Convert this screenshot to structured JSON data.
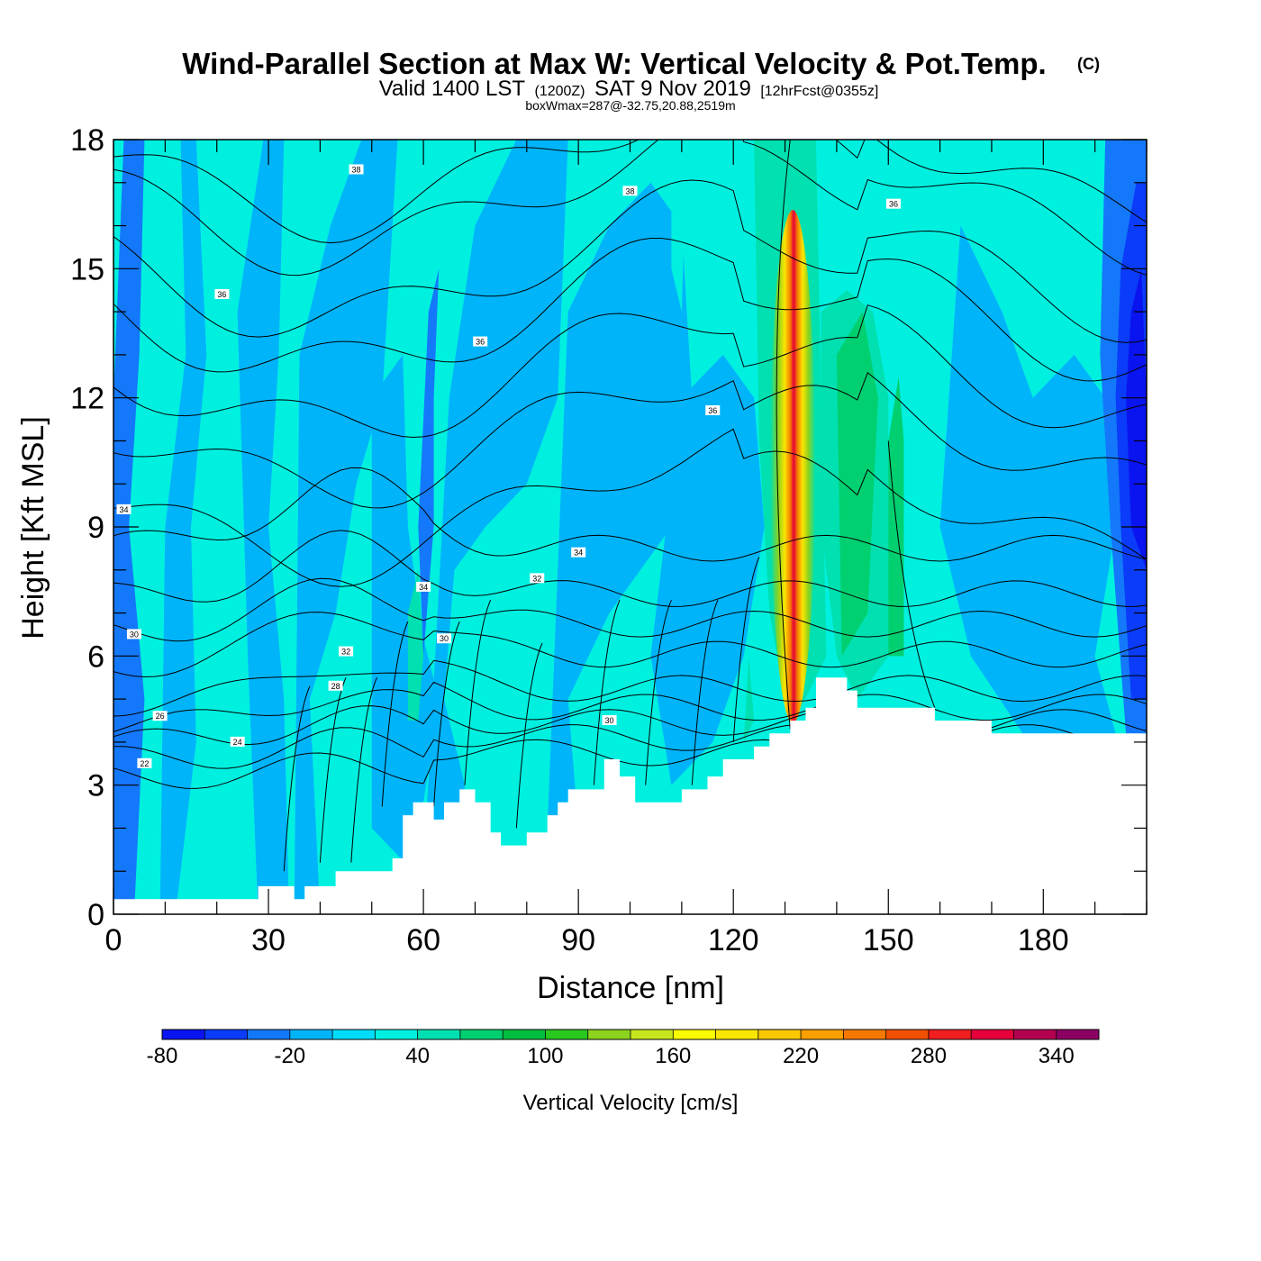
{
  "title": {
    "main": "Wind-Parallel Section at Max W: Vertical Velocity & Pot.Temp.",
    "mark": "(C)",
    "valid_prefix": "Valid 1400 LST",
    "valid_zulu": "(1200Z)",
    "valid_date": "SAT 9 Nov 2019",
    "forecast": "[12hrFcst@0355z]",
    "box_info": "boxWmax=287@-32.75,20.88,2519m"
  },
  "chart_data": {
    "type": "heatmap",
    "xlabel": "Distance [nm]",
    "ylabel": "Height [Kft MSL]",
    "xlim": [
      0,
      200
    ],
    "ylim": [
      0,
      18
    ],
    "x_ticks": [
      0,
      30,
      60,
      90,
      120,
      150,
      180
    ],
    "y_ticks": [
      0,
      3,
      6,
      9,
      12,
      15,
      18
    ],
    "colorbar": {
      "title": "Vertical Velocity [cm/s]",
      "min": -80,
      "max": 360,
      "step": 20,
      "labels": [
        -80,
        -20,
        40,
        100,
        160,
        220,
        280,
        340
      ],
      "colors": [
        "#0a14f0",
        "#0a3cfa",
        "#1478fa",
        "#00b4fa",
        "#00dcfa",
        "#00f0e0",
        "#00e0b0",
        "#00d070",
        "#00be40",
        "#28c81e",
        "#8cd21e",
        "#c8e61e",
        "#fafa00",
        "#fae600",
        "#fac800",
        "#faa000",
        "#f57800",
        "#f05000",
        "#f01e1e",
        "#e6003c",
        "#b40050",
        "#8c0064"
      ]
    },
    "terrain": [
      [
        0,
        0.35
      ],
      [
        28,
        0.35
      ],
      [
        28,
        0.65
      ],
      [
        35,
        0.65
      ],
      [
        35,
        0.35
      ],
      [
        37,
        0.35
      ],
      [
        37,
        0.65
      ],
      [
        43,
        0.65
      ],
      [
        43,
        1.0
      ],
      [
        54,
        1.0
      ],
      [
        54,
        1.3
      ],
      [
        56,
        1.3
      ],
      [
        56,
        2.3
      ],
      [
        58,
        2.3
      ],
      [
        58,
        2.6
      ],
      [
        62,
        2.6
      ],
      [
        62,
        2.2
      ],
      [
        64,
        2.2
      ],
      [
        64,
        2.6
      ],
      [
        67,
        2.6
      ],
      [
        67,
        2.9
      ],
      [
        70,
        2.9
      ],
      [
        70,
        2.6
      ],
      [
        73,
        2.6
      ],
      [
        73,
        1.9
      ],
      [
        75,
        1.9
      ],
      [
        75,
        1.6
      ],
      [
        80,
        1.6
      ],
      [
        80,
        1.9
      ],
      [
        84,
        1.9
      ],
      [
        84,
        2.3
      ],
      [
        86,
        2.3
      ],
      [
        86,
        2.6
      ],
      [
        88,
        2.6
      ],
      [
        88,
        2.9
      ],
      [
        95,
        2.9
      ],
      [
        95,
        3.6
      ],
      [
        98,
        3.6
      ],
      [
        98,
        3.2
      ],
      [
        101,
        3.2
      ],
      [
        101,
        2.6
      ],
      [
        110,
        2.6
      ],
      [
        110,
        2.9
      ],
      [
        115,
        2.9
      ],
      [
        115,
        3.2
      ],
      [
        118,
        3.2
      ],
      [
        118,
        3.6
      ],
      [
        124,
        3.6
      ],
      [
        124,
        3.9
      ],
      [
        127,
        3.9
      ],
      [
        127,
        4.2
      ],
      [
        131,
        4.2
      ],
      [
        131,
        4.5
      ],
      [
        134,
        4.5
      ],
      [
        134,
        4.8
      ],
      [
        136,
        4.8
      ],
      [
        136,
        5.5
      ],
      [
        142,
        5.5
      ],
      [
        142,
        5.2
      ],
      [
        144,
        5.2
      ],
      [
        144,
        4.8
      ],
      [
        159,
        4.8
      ],
      [
        159,
        4.5
      ],
      [
        170,
        4.5
      ],
      [
        170,
        4.2
      ],
      [
        200,
        4.2
      ]
    ],
    "theta_labels": [
      {
        "text": "38",
        "x": 47,
        "y": 17.3
      },
      {
        "text": "38",
        "x": 100,
        "y": 16.8
      },
      {
        "text": "36",
        "x": 151,
        "y": 16.5
      },
      {
        "text": "36",
        "x": 21,
        "y": 14.4
      },
      {
        "text": "36",
        "x": 71,
        "y": 13.3
      },
      {
        "text": "36",
        "x": 116,
        "y": 11.7
      },
      {
        "text": "34",
        "x": 2,
        "y": 9.4
      },
      {
        "text": "34",
        "x": 90,
        "y": 8.4
      },
      {
        "text": "34",
        "x": 60,
        "y": 7.6
      },
      {
        "text": "32",
        "x": 82,
        "y": 7.8
      },
      {
        "text": "30",
        "x": 64,
        "y": 6.4
      },
      {
        "text": "30",
        "x": 4,
        "y": 6.5
      },
      {
        "text": "32",
        "x": 45,
        "y": 6.1
      },
      {
        "text": "28",
        "x": 43,
        "y": 5.3
      },
      {
        "text": "26",
        "x": 9,
        "y": 4.6
      },
      {
        "text": "24",
        "x": 24,
        "y": 4.0
      },
      {
        "text": "30",
        "x": 96,
        "y": 4.5
      },
      {
        "text": "22",
        "x": 6,
        "y": 3.5
      }
    ]
  }
}
